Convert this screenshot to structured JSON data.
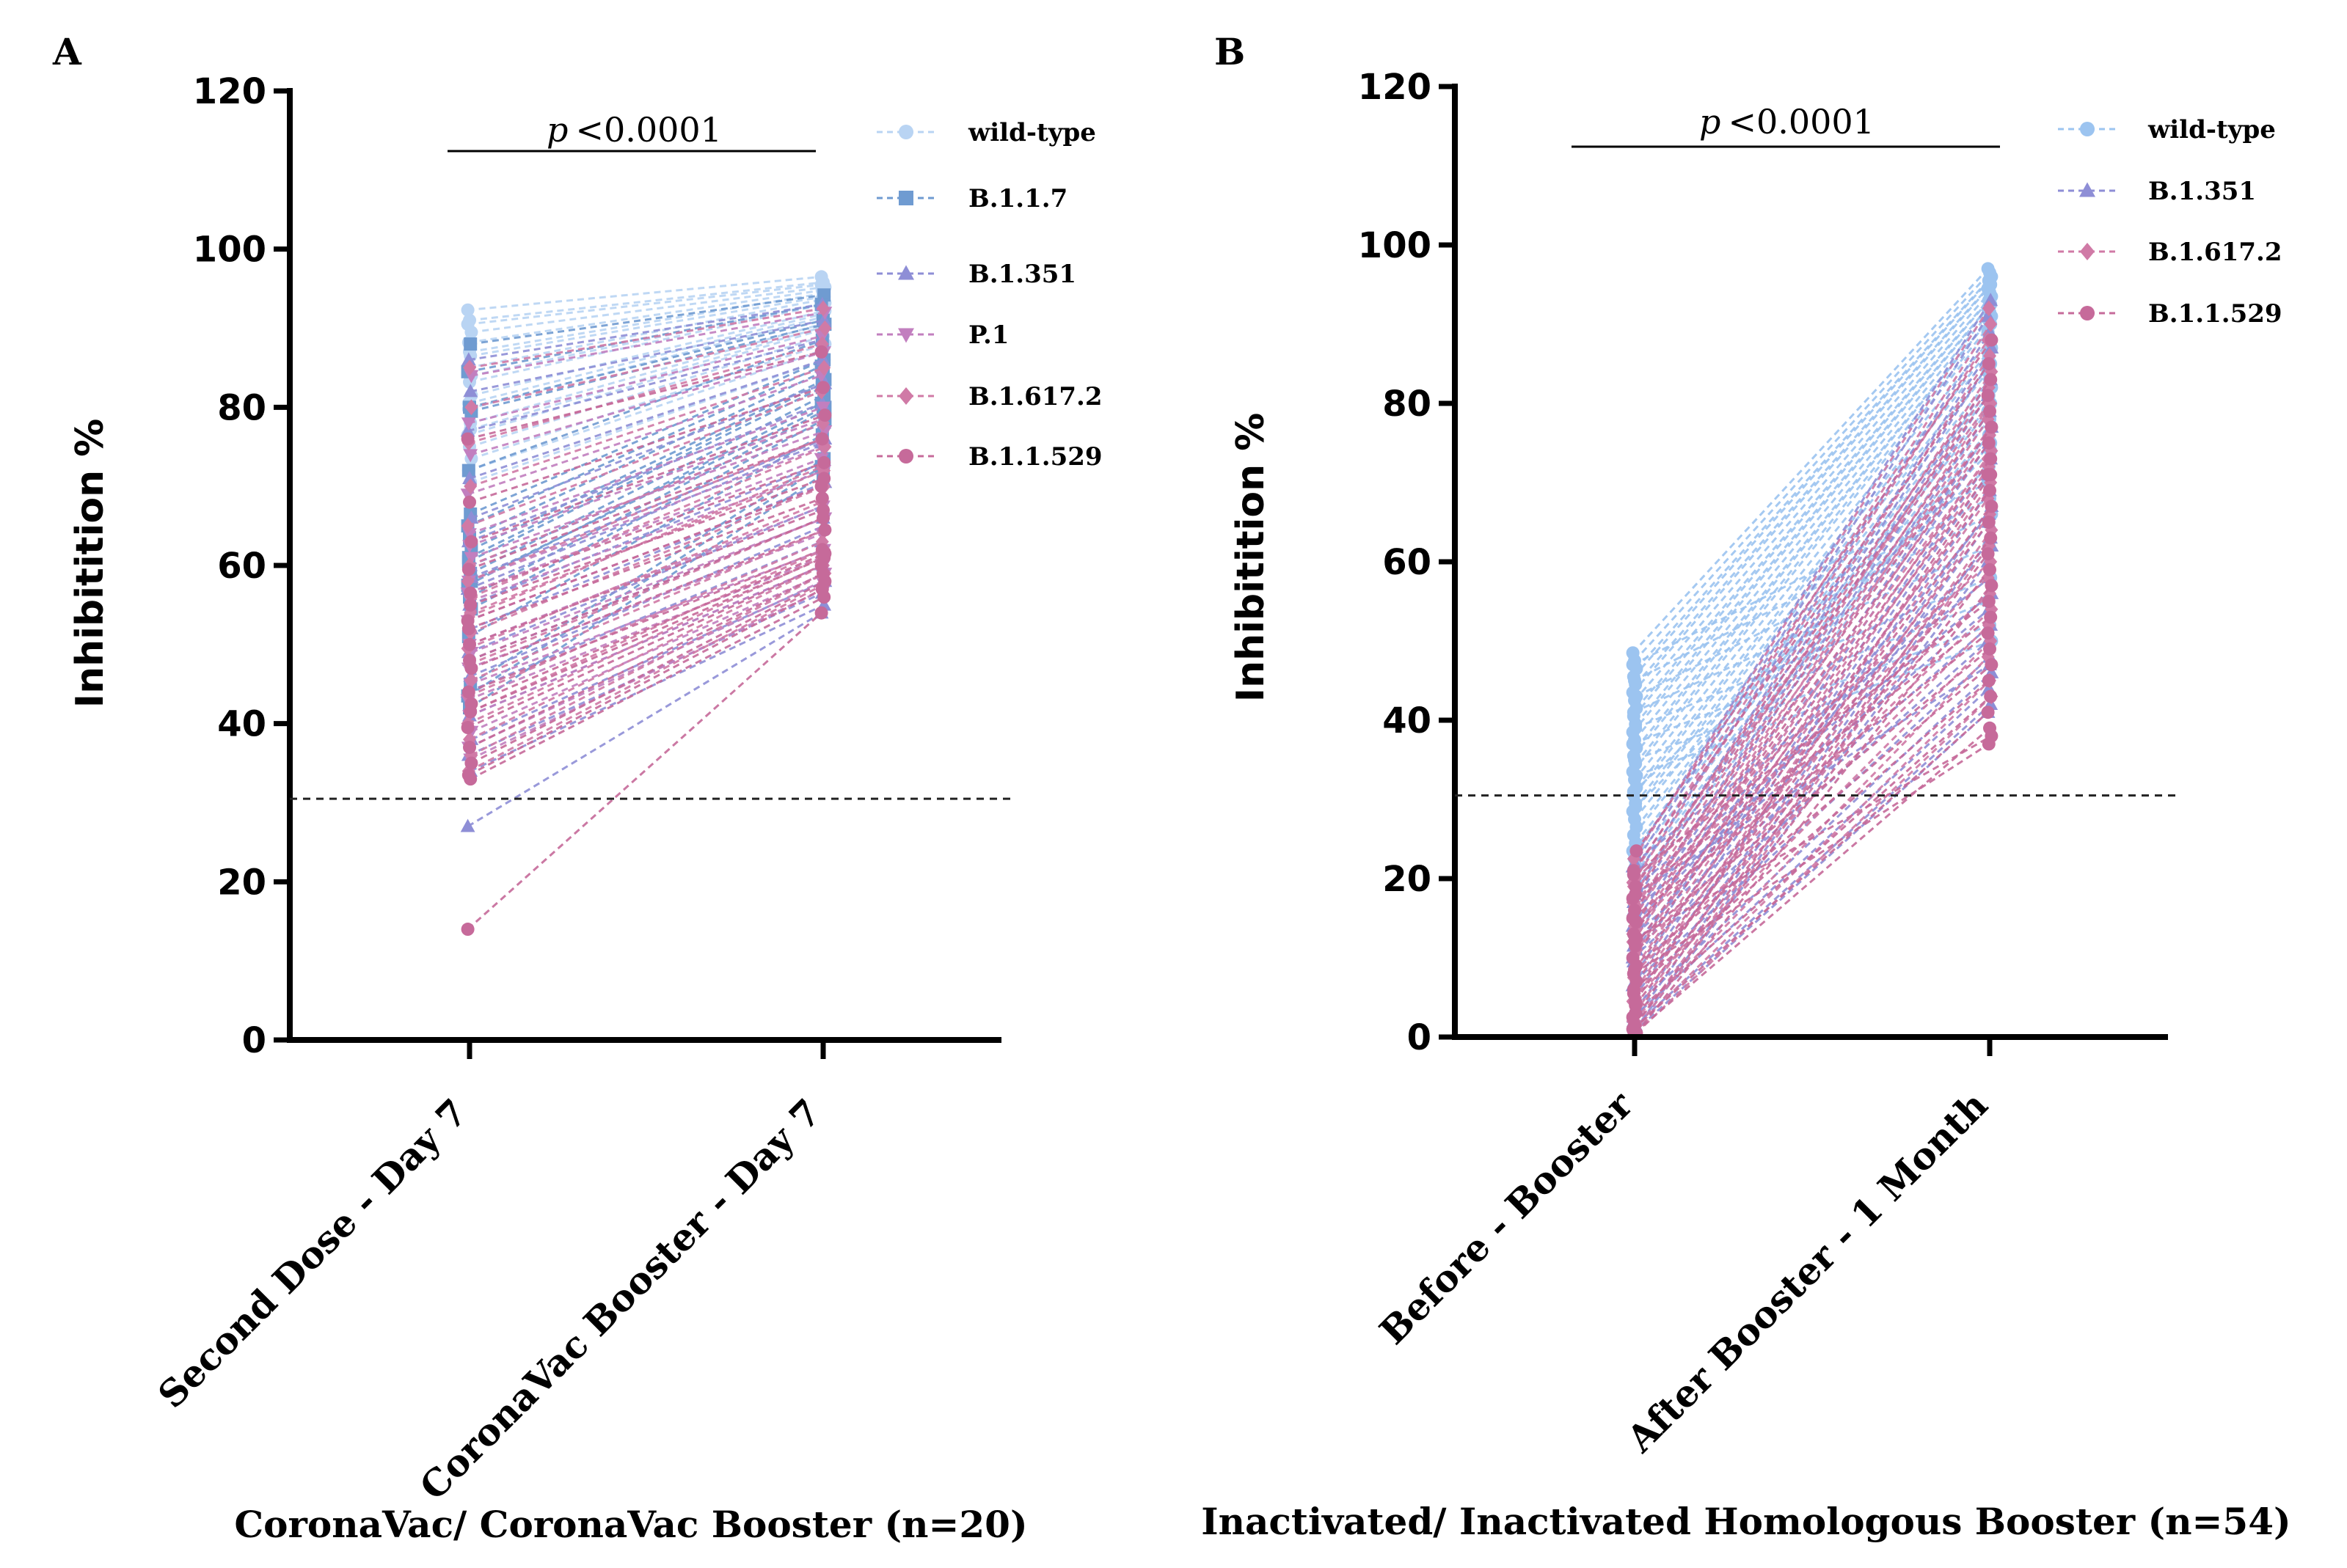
{
  "chart_data": [
    {
      "panel": "A",
      "type": "line",
      "ylabel": "Inhibitition %",
      "ylim": [
        0,
        120
      ],
      "yticks": [
        0,
        20,
        40,
        60,
        80,
        100,
        120
      ],
      "categories": [
        "Second Dose - Day 7",
        "CoronaVac Booster - Day 7"
      ],
      "group_title": "CoronaVac/ CoronaVac Booster (n=20)",
      "n": 20,
      "threshold": 30.5,
      "significance": {
        "p_letter": "p",
        "text": "<0.0001"
      },
      "legend_position": "top-right",
      "series": [
        {
          "name": "wild-type",
          "color": "#b9d4f3",
          "marker": "circle",
          "pairs": [
            [
              92.3,
              96.5
            ],
            [
              91.0,
              95.8
            ],
            [
              89.5,
              95.2
            ],
            [
              88.2,
              94.8
            ],
            [
              86.5,
              94.0
            ],
            [
              85.0,
              93.6
            ],
            [
              83.2,
              93.0
            ],
            [
              81.5,
              92.2
            ],
            [
              79.8,
              91.4
            ],
            [
              78.0,
              90.6
            ],
            [
              76.5,
              89.8
            ],
            [
              75.0,
              89.0
            ],
            [
              73.5,
              88.0
            ],
            [
              72.0,
              87.2
            ],
            [
              70.5,
              86.0
            ],
            [
              90.5,
              95.5
            ],
            [
              87.0,
              94.4
            ],
            [
              84.0,
              93.2
            ],
            [
              80.5,
              91.8
            ],
            [
              77.2,
              90.2
            ]
          ]
        },
        {
          "name": "B.1.1.7",
          "color": "#6f9bd1",
          "marker": "square",
          "pairs": [
            [
              88.0,
              94.2
            ],
            [
              84.5,
              93.0
            ],
            [
              80.0,
              91.0
            ],
            [
              79.5,
              90.5
            ],
            [
              72.0,
              88.5
            ],
            [
              66.5,
              86.0
            ],
            [
              65.0,
              85.2
            ],
            [
              63.5,
              84.5
            ],
            [
              62.0,
              83.5
            ],
            [
              60.5,
              82.5
            ],
            [
              59.0,
              81.5
            ],
            [
              57.5,
              80.5
            ],
            [
              56.0,
              79.5
            ],
            [
              54.5,
              78.5
            ],
            [
              51.0,
              76.5
            ],
            [
              45.0,
              73.5
            ],
            [
              43.5,
              72.5
            ],
            [
              42.0,
              71.5
            ],
            [
              58.0,
              80.0
            ],
            [
              61.0,
              83.0
            ]
          ]
        },
        {
          "name": "B.1.351",
          "color": "#8e8ed6",
          "marker": "triangle",
          "pairs": [
            [
              86.0,
              93.0
            ],
            [
              82.0,
              91.0
            ],
            [
              77.0,
              88.5
            ],
            [
              71.0,
              86.0
            ],
            [
              66.0,
              83.0
            ],
            [
              63.0,
              80.5
            ],
            [
              60.0,
              78.0
            ],
            [
              57.0,
              75.5
            ],
            [
              55.0,
              73.0
            ],
            [
              52.0,
              70.5
            ],
            [
              49.0,
              67.5
            ],
            [
              46.0,
              65.0
            ],
            [
              44.0,
              63.0
            ],
            [
              41.0,
              60.0
            ],
            [
              38.0,
              58.0
            ],
            [
              36.0,
              56.5
            ],
            [
              34.0,
              55.0
            ],
            [
              27.0,
              54.0
            ],
            [
              48.0,
              66.0
            ],
            [
              58.5,
              76.0
            ]
          ]
        },
        {
          "name": "P.1",
          "color": "#c27fbf",
          "marker": "triangle-down",
          "pairs": [
            [
              84.0,
              92.0
            ],
            [
              78.0,
              89.0
            ],
            [
              74.0,
              87.0
            ],
            [
              69.0,
              84.0
            ],
            [
              64.0,
              80.0
            ],
            [
              61.0,
              77.0
            ],
            [
              58.0,
              75.0
            ],
            [
              55.5,
              72.0
            ],
            [
              53.0,
              70.0
            ],
            [
              50.0,
              67.5
            ],
            [
              49.0,
              66.0
            ],
            [
              47.0,
              64.0
            ],
            [
              45.0,
              62.0
            ],
            [
              43.0,
              61.0
            ],
            [
              41.0,
              60.0
            ],
            [
              39.0,
              59.0
            ],
            [
              37.0,
              58.0
            ],
            [
              35.5,
              57.0
            ],
            [
              56.5,
              73.5
            ],
            [
              62.5,
              78.5
            ]
          ]
        },
        {
          "name": "B.1.617.2",
          "color": "#d07aa6",
          "marker": "diamond",
          "pairs": [
            [
              85.0,
              92.5
            ],
            [
              80.0,
              90.0
            ],
            [
              75.5,
              88.0
            ],
            [
              70.0,
              85.0
            ],
            [
              65.0,
              82.0
            ],
            [
              60.0,
              78.0
            ],
            [
              56.0,
              75.0
            ],
            [
              53.5,
              72.5
            ],
            [
              51.5,
              70.0
            ],
            [
              49.5,
              68.0
            ],
            [
              47.5,
              66.0
            ],
            [
              45.5,
              64.5
            ],
            [
              43.5,
              63.0
            ],
            [
              41.5,
              62.0
            ],
            [
              40.0,
              61.0
            ],
            [
              38.0,
              60.0
            ],
            [
              36.0,
              59.0
            ],
            [
              34.0,
              57.5
            ],
            [
              54.0,
              72.0
            ],
            [
              58.0,
              76.0
            ]
          ]
        },
        {
          "name": "B.1.1.529",
          "color": "#c66a9a",
          "marker": "circle",
          "pairs": [
            [
              76.0,
              87.0
            ],
            [
              68.0,
              82.5
            ],
            [
              63.0,
              79.0
            ],
            [
              59.5,
              76.0
            ],
            [
              56.5,
              73.0
            ],
            [
              53.0,
              70.0
            ],
            [
              50.0,
              67.0
            ],
            [
              47.0,
              64.5
            ],
            [
              44.0,
              62.0
            ],
            [
              41.5,
              61.0
            ],
            [
              39.5,
              60.0
            ],
            [
              37.0,
              59.0
            ],
            [
              35.0,
              58.0
            ],
            [
              33.5,
              57.0
            ],
            [
              33.0,
              56.0
            ],
            [
              14.0,
              54.0
            ],
            [
              48.0,
              66.0
            ],
            [
              42.5,
              61.5
            ],
            [
              52.0,
              68.5
            ],
            [
              55.0,
              71.0
            ]
          ]
        }
      ]
    },
    {
      "panel": "B",
      "type": "line",
      "ylabel": "Inhibitition %",
      "ylim": [
        0,
        120
      ],
      "yticks": [
        0,
        20,
        40,
        60,
        80,
        100,
        120
      ],
      "categories": [
        "Before - Booster",
        "After Booster - 1 Month"
      ],
      "group_title": "Inactivated/ Inactivated Homologous Booster (n=54)",
      "n": 54,
      "threshold": 30.5,
      "significance": {
        "p_letter": "p",
        "text": "<0.0001"
      },
      "legend_position": "top-right",
      "series": [
        {
          "name": "wild-type",
          "color": "#9cc4f0",
          "marker": "circle",
          "pairs": [
            [
              48.5,
              97.0
            ],
            [
              47.5,
              96.5
            ],
            [
              46.5,
              96.0
            ],
            [
              45.5,
              95.5
            ],
            [
              44.5,
              95.0
            ],
            [
              43.5,
              94.5
            ],
            [
              42.5,
              94.0
            ],
            [
              41.5,
              93.5
            ],
            [
              40.5,
              93.0
            ],
            [
              39.5,
              92.5
            ],
            [
              38.5,
              92.0
            ],
            [
              37.5,
              91.5
            ],
            [
              36.5,
              91.0
            ],
            [
              35.5,
              90.5
            ],
            [
              34.5,
              90.0
            ],
            [
              33.5,
              89.0
            ],
            [
              32.5,
              88.0
            ],
            [
              31.5,
              87.0
            ],
            [
              30.5,
              86.0
            ],
            [
              29.5,
              85.0
            ],
            [
              28.5,
              84.0
            ],
            [
              27.5,
              83.0
            ],
            [
              26.5,
              82.0
            ],
            [
              25.5,
              81.0
            ],
            [
              24.5,
              80.0
            ],
            [
              23.5,
              79.0
            ],
            [
              22.5,
              78.0
            ],
            [
              21.5,
              77.0
            ],
            [
              20.5,
              76.0
            ],
            [
              19.5,
              75.0
            ],
            [
              47.0,
              70.0
            ],
            [
              45.0,
              68.0
            ],
            [
              43.0,
              66.0
            ],
            [
              41.0,
              62.0
            ],
            [
              39.0,
              58.0
            ],
            [
              37.0,
              55.0
            ],
            [
              35.0,
              52.0
            ],
            [
              33.0,
              50.0
            ],
            [
              31.0,
              72.0
            ],
            [
              29.0,
              74.0
            ]
          ]
        },
        {
          "name": "B.1.351",
          "color": "#8e8ed6",
          "marker": "triangle",
          "pairs": [
            [
              23.0,
              93.0
            ],
            [
              21.5,
              91.0
            ],
            [
              20.0,
              89.0
            ],
            [
              18.5,
              87.0
            ],
            [
              17.0,
              85.0
            ],
            [
              15.5,
              83.0
            ],
            [
              14.0,
              81.0
            ],
            [
              12.5,
              79.0
            ],
            [
              11.0,
              77.0
            ],
            [
              9.5,
              75.0
            ],
            [
              8.0,
              73.0
            ],
            [
              6.5,
              71.0
            ],
            [
              5.0,
              69.0
            ],
            [
              3.5,
              67.0
            ],
            [
              2.0,
              65.0
            ],
            [
              1.0,
              63.0
            ],
            [
              0.5,
              60.0
            ],
            [
              22.0,
              58.0
            ],
            [
              19.0,
              56.0
            ],
            [
              16.0,
              54.0
            ],
            [
              13.0,
              52.0
            ],
            [
              10.0,
              50.0
            ],
            [
              7.0,
              48.0
            ],
            [
              4.0,
              46.0
            ],
            [
              2.5,
              44.0
            ],
            [
              1.5,
              42.0
            ],
            [
              0.5,
              41.0
            ],
            [
              18.0,
              47.0
            ],
            [
              14.5,
              62.0
            ],
            [
              11.5,
              66.0
            ]
          ]
        },
        {
          "name": "B.1.617.2",
          "color": "#d07aa6",
          "marker": "diamond",
          "pairs": [
            [
              22.5,
              92.0
            ],
            [
              21.0,
              90.0
            ],
            [
              19.5,
              88.0
            ],
            [
              18.0,
              86.0
            ],
            [
              16.5,
              84.0
            ],
            [
              15.0,
              82.0
            ],
            [
              13.5,
              80.0
            ],
            [
              12.0,
              78.0
            ],
            [
              10.5,
              76.0
            ],
            [
              9.0,
              74.0
            ],
            [
              7.5,
              72.0
            ],
            [
              6.0,
              70.0
            ],
            [
              4.5,
              68.0
            ],
            [
              3.0,
              66.0
            ],
            [
              1.5,
              64.0
            ],
            [
              0.5,
              62.0
            ],
            [
              20.0,
              60.0
            ],
            [
              17.0,
              58.0
            ],
            [
              14.0,
              56.0
            ],
            [
              11.0,
              54.0
            ],
            [
              8.0,
              52.0
            ],
            [
              5.0,
              50.0
            ],
            [
              2.0,
              48.0
            ],
            [
              1.0,
              45.0
            ],
            [
              0.5,
              43.0
            ],
            [
              19.0,
              80.0
            ],
            [
              16.0,
              77.0
            ],
            [
              13.0,
              73.0
            ]
          ]
        },
        {
          "name": "B.1.1.529",
          "color": "#c66a9a",
          "marker": "circle",
          "pairs": [
            [
              23.5,
              88.0
            ],
            [
              21.0,
              85.0
            ],
            [
              19.0,
              83.0
            ],
            [
              17.5,
              81.0
            ],
            [
              16.0,
              79.0
            ],
            [
              14.5,
              77.0
            ],
            [
              13.0,
              75.0
            ],
            [
              11.5,
              73.0
            ],
            [
              10.0,
              71.0
            ],
            [
              8.5,
              69.0
            ],
            [
              7.0,
              67.0
            ],
            [
              5.5,
              65.0
            ],
            [
              4.0,
              63.0
            ],
            [
              2.5,
              61.0
            ],
            [
              1.5,
              59.0
            ],
            [
              0.5,
              57.0
            ],
            [
              20.5,
              55.0
            ],
            [
              18.0,
              53.0
            ],
            [
              15.0,
              51.0
            ],
            [
              12.0,
              49.0
            ],
            [
              9.0,
              47.0
            ],
            [
              6.0,
              45.0
            ],
            [
              3.0,
              43.0
            ],
            [
              1.0,
              41.0
            ],
            [
              0.5,
              39.0
            ],
            [
              12.5,
              38.0
            ],
            [
              8.0,
              37.0
            ],
            [
              4.5,
              71.0
            ]
          ]
        }
      ]
    }
  ]
}
